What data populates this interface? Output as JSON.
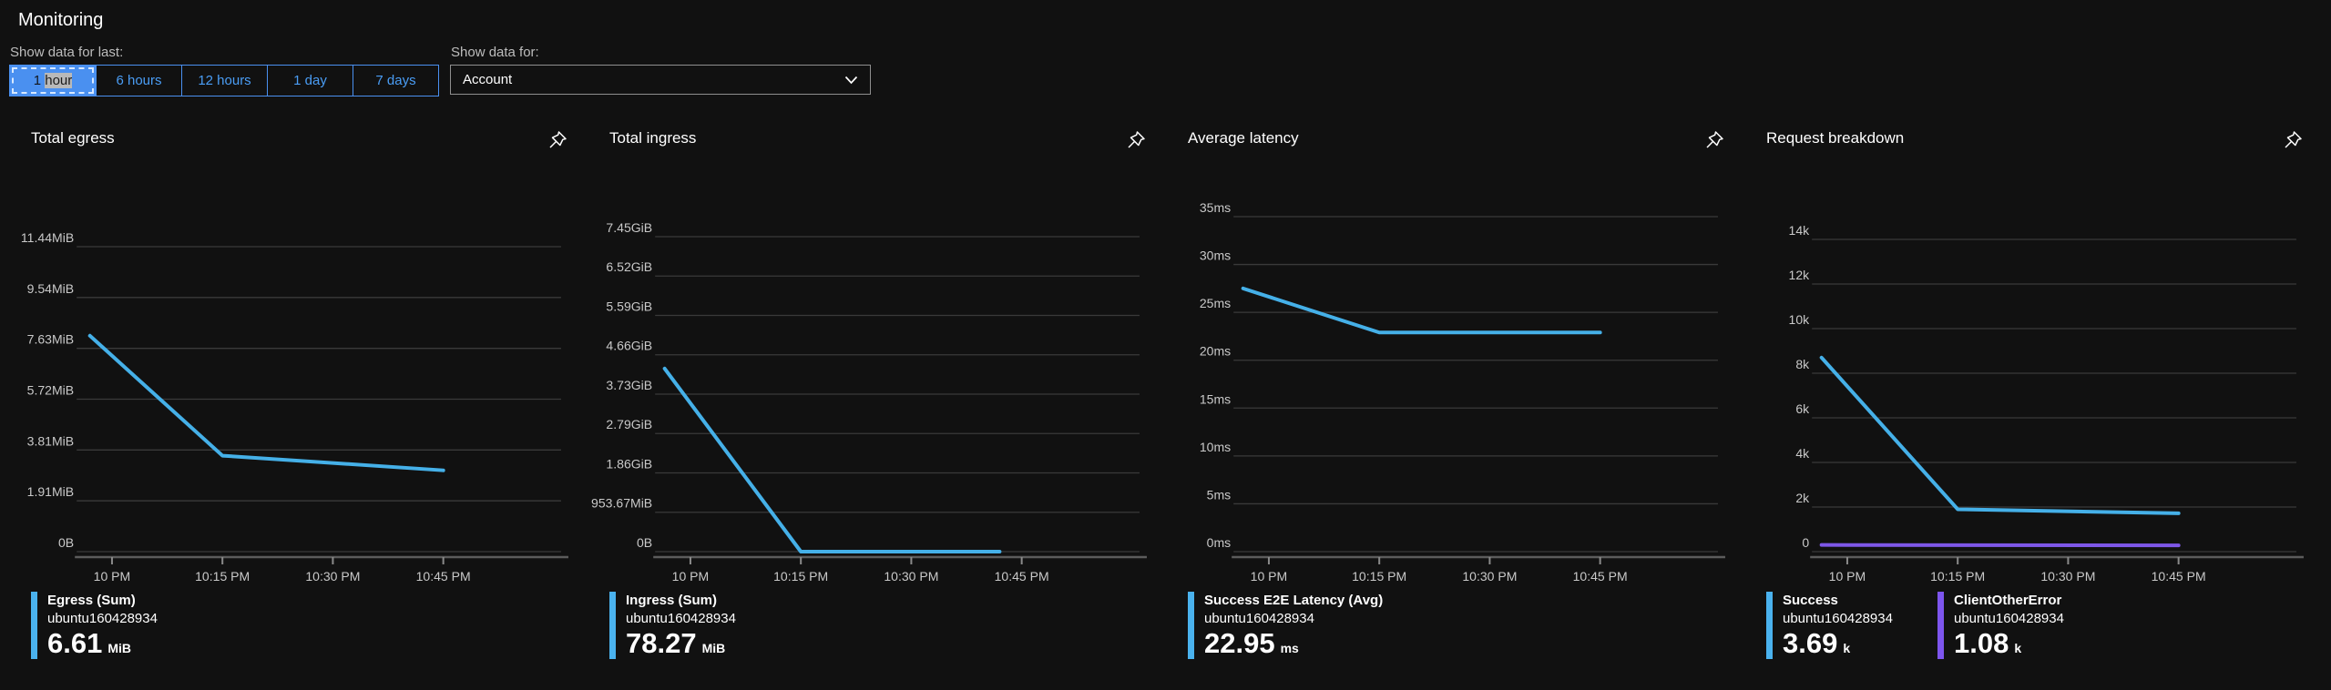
{
  "header": {
    "title": "Monitoring"
  },
  "controls": {
    "time_label": "Show data for last:",
    "time_buttons": [
      {
        "label": "1 hour",
        "selected": true,
        "highlight": "hour"
      },
      {
        "label": "6 hours",
        "selected": false
      },
      {
        "label": "12 hours",
        "selected": false
      },
      {
        "label": "1 day",
        "selected": false
      },
      {
        "label": "7 days",
        "selected": false
      }
    ],
    "scope_label": "Show data for:",
    "scope_value": "Account"
  },
  "colors": {
    "accent": "#4a90f0",
    "background": "#111111",
    "gridline": "#3a3a3a",
    "axis_line": "#5c5c5c",
    "tick_mark": "#8a8a8a",
    "tick_text": "#c9c9c9",
    "line_blue": "#45b0e8",
    "line_purple": "#7e57e8"
  },
  "chart_data": [
    {
      "type": "line",
      "title": "Total egress",
      "y_ticks": [
        "11.44MiB",
        "9.54MiB",
        "7.63MiB",
        "5.72MiB",
        "3.81MiB",
        "1.91MiB",
        "0B"
      ],
      "ylim": [
        0,
        11.44
      ],
      "y_unit": "MiB",
      "grid_top": 103,
      "legend_position": "bottom",
      "x_axis": {
        "min": -4.3,
        "max": 61,
        "ticks": [
          {
            "t": 0,
            "label": "10 PM"
          },
          {
            "t": 15,
            "label": "10:15 PM"
          },
          {
            "t": 30,
            "label": "10:30 PM"
          },
          {
            "t": 45,
            "label": "10:45 PM"
          }
        ]
      },
      "series": [
        {
          "name": "Egress (Sum)",
          "resource": "ubuntu160428934",
          "color": "#45b0e8",
          "bar_color": "#4ab2ee",
          "metric_value": "6.61",
          "metric_unit": "MiB",
          "points": [
            {
              "t": -3,
              "v": 8.1
            },
            {
              "t": 15,
              "v": 3.6
            },
            {
              "t": 45,
              "v": 3.05
            }
          ]
        }
      ]
    },
    {
      "type": "line",
      "title": "Total ingress",
      "y_ticks": [
        "7.45GiB",
        "6.52GiB",
        "5.59GiB",
        "4.66GiB",
        "3.73GiB",
        "2.79GiB",
        "1.86GiB",
        "953.67MiB",
        "0B"
      ],
      "ylim": [
        0,
        7.45
      ],
      "y_unit": "GiB",
      "grid_top": 92,
      "legend_position": "bottom",
      "x_axis": {
        "min": -4.3,
        "max": 61,
        "ticks": [
          {
            "t": 0,
            "label": "10 PM"
          },
          {
            "t": 15,
            "label": "10:15 PM"
          },
          {
            "t": 30,
            "label": "10:30 PM"
          },
          {
            "t": 45,
            "label": "10:45 PM"
          }
        ]
      },
      "series": [
        {
          "name": "Ingress (Sum)",
          "resource": "ubuntu160428934",
          "color": "#45b0e8",
          "bar_color": "#4ab2ee",
          "metric_value": "78.27",
          "metric_unit": "MiB",
          "points": [
            {
              "t": -3.5,
              "v": 4.33
            },
            {
              "t": 15,
              "v": 0
            },
            {
              "t": 42,
              "v": 0
            }
          ]
        }
      ]
    },
    {
      "type": "line",
      "title": "Average latency",
      "y_ticks": [
        "35ms",
        "30ms",
        "25ms",
        "20ms",
        "15ms",
        "10ms",
        "5ms",
        "0ms"
      ],
      "ylim": [
        0,
        35
      ],
      "y_unit": "ms",
      "grid_top": 70,
      "legend_position": "bottom",
      "x_axis": {
        "min": -4.3,
        "max": 61,
        "ticks": [
          {
            "t": 0,
            "label": "10 PM"
          },
          {
            "t": 15,
            "label": "10:15 PM"
          },
          {
            "t": 30,
            "label": "10:30 PM"
          },
          {
            "t": 45,
            "label": "10:45 PM"
          }
        ]
      },
      "series": [
        {
          "name": "Success E2E Latency (Avg)",
          "resource": "ubuntu160428934",
          "color": "#45b0e8",
          "bar_color": "#4ab2ee",
          "metric_value": "22.95",
          "metric_unit": "ms",
          "points": [
            {
              "t": -3.5,
              "v": 27.5
            },
            {
              "t": 15,
              "v": 22.9
            },
            {
              "t": 45,
              "v": 22.9
            }
          ]
        }
      ]
    },
    {
      "type": "line",
      "title": "Request breakdown",
      "y_ticks": [
        "14k",
        "12k",
        "10k",
        "8k",
        "6k",
        "4k",
        "2k",
        "0"
      ],
      "ylim": [
        0,
        14
      ],
      "y_unit": "k",
      "grid_top": 95,
      "legend_position": "bottom",
      "x_axis": {
        "min": -4.3,
        "max": 61,
        "ticks": [
          {
            "t": 0,
            "label": "10 PM"
          },
          {
            "t": 15,
            "label": "10:15 PM"
          },
          {
            "t": 30,
            "label": "10:30 PM"
          },
          {
            "t": 45,
            "label": "10:45 PM"
          }
        ]
      },
      "series": [
        {
          "name": "Success",
          "resource": "ubuntu160428934",
          "color": "#45b0e8",
          "bar_color": "#4ab2ee",
          "metric_value": "3.69",
          "metric_unit": "k",
          "points": [
            {
              "t": -3.5,
              "v": 8.7
            },
            {
              "t": 15,
              "v": 1.9
            },
            {
              "t": 45,
              "v": 1.72
            }
          ]
        },
        {
          "name": "ClientOtherError",
          "resource": "ubuntu160428934",
          "color": "#7e57e8",
          "bar_color": "#7d55ee",
          "metric_value": "1.08",
          "metric_unit": "k",
          "points": [
            {
              "t": -3.5,
              "v": 0.3
            },
            {
              "t": 45,
              "v": 0.28
            }
          ]
        }
      ]
    }
  ]
}
